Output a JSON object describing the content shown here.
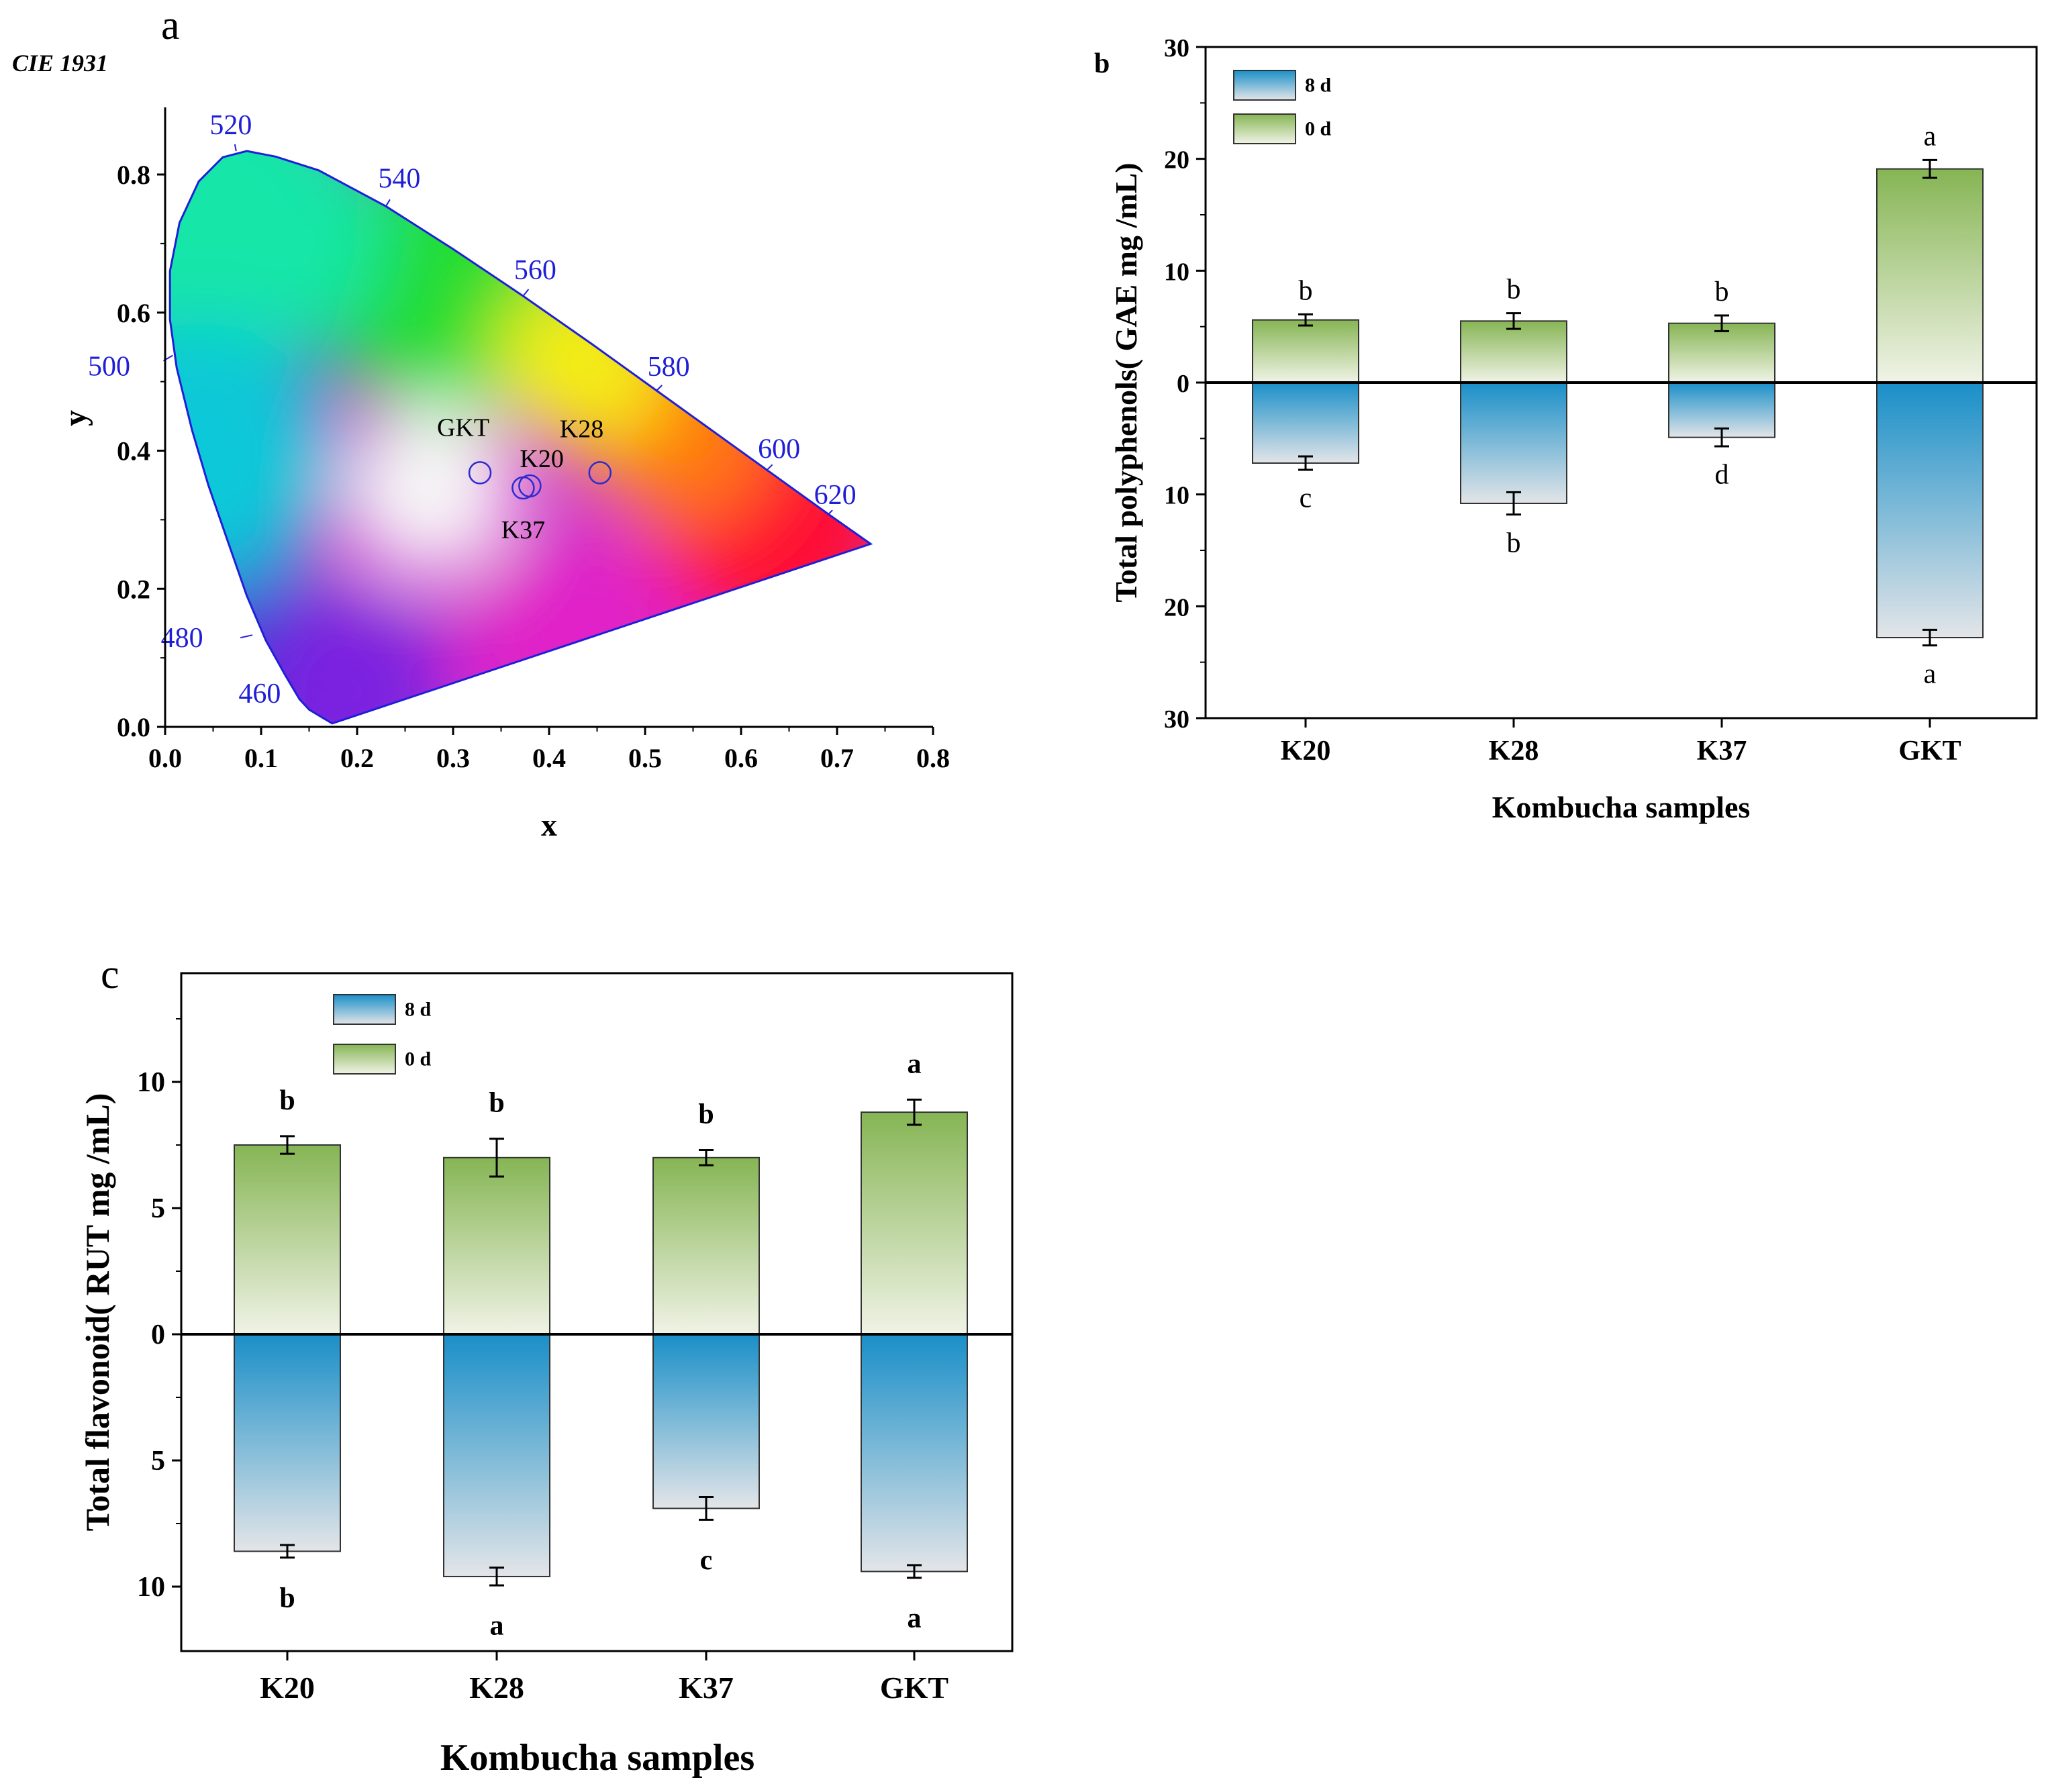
{
  "colors": {
    "axis": "#000000",
    "locus": "#1f1fd8",
    "wavelength_label": "#1f1fd8",
    "marker": "#2b2bd0",
    "bar_8d_top": "#1a8fc8",
    "bar_8d_bottom": "#e3e5e8",
    "bar_0d_top": "#86b554",
    "bar_0d_bottom": "#f0f3e6"
  },
  "chart_data": [
    {
      "panel": "a",
      "type": "scatter",
      "title": "CIE 1931",
      "xlabel": "x",
      "ylabel": "y",
      "xlim": [
        0,
        0.8
      ],
      "ylim": [
        0,
        0.9
      ],
      "xticks": [
        "0.0",
        "0.1",
        "0.2",
        "0.3",
        "0.4",
        "0.5",
        "0.6",
        "0.7",
        "0.8"
      ],
      "yticks": [
        "0.0",
        "0.2",
        "0.4",
        "0.6",
        "0.8"
      ],
      "wavelength_labels": [
        {
          "label": "460",
          "x": 0.144,
          "y": 0.03
        },
        {
          "label": "480",
          "x": 0.091,
          "y": 0.133
        },
        {
          "label": "500",
          "x": 0.008,
          "y": 0.538
        },
        {
          "label": "520",
          "x": 0.074,
          "y": 0.834
        },
        {
          "label": "540",
          "x": 0.23,
          "y": 0.754
        },
        {
          "label": "560",
          "x": 0.373,
          "y": 0.624
        },
        {
          "label": "580",
          "x": 0.512,
          "y": 0.487
        },
        {
          "label": "600",
          "x": 0.627,
          "y": 0.372
        },
        {
          "label": "620",
          "x": 0.691,
          "y": 0.308
        }
      ],
      "points": [
        {
          "name": "GKT",
          "x": 0.328,
          "y": 0.368
        },
        {
          "name": "K28",
          "x": 0.453,
          "y": 0.368
        },
        {
          "name": "K20",
          "x": 0.38,
          "y": 0.349
        },
        {
          "name": "K37",
          "x": 0.373,
          "y": 0.346
        }
      ]
    },
    {
      "panel": "b",
      "type": "bar",
      "xlabel": "Kombucha samples",
      "ylabel": "Total polyphenols( GAE mg /mL)",
      "categories": [
        "K20",
        "K28",
        "K37",
        "GKT"
      ],
      "ylim": [
        -30,
        30
      ],
      "yticks": [
        "30",
        "20",
        "10",
        "0",
        "10",
        "20",
        "30"
      ],
      "series": [
        {
          "name": "8 d",
          "direction": "down",
          "values": [
            7.2,
            10.8,
            4.9,
            22.8
          ],
          "errors": [
            0.6,
            1.0,
            0.8,
            0.7
          ],
          "letters": [
            "c",
            "b",
            "d",
            "a"
          ]
        },
        {
          "name": "0 d",
          "direction": "up",
          "values": [
            5.6,
            5.5,
            5.3,
            19.1
          ],
          "errors": [
            0.5,
            0.7,
            0.7,
            0.8
          ],
          "letters": [
            "b",
            "b",
            "b",
            "a"
          ]
        }
      ]
    },
    {
      "panel": "c",
      "type": "bar",
      "xlabel": "Kombucha samples",
      "ylabel": "Total flavonoid( RUT mg /mL)",
      "categories": [
        "K20",
        "K28",
        "K37",
        "GKT"
      ],
      "ylim": [
        -12.5,
        14
      ],
      "yticks": [
        "10",
        "5",
        "0",
        "5",
        "10"
      ],
      "series": [
        {
          "name": "8 d",
          "direction": "down",
          "values": [
            8.6,
            9.6,
            6.9,
            9.4
          ],
          "errors": [
            0.25,
            0.35,
            0.45,
            0.25
          ],
          "letters": [
            "b",
            "a",
            "c",
            "a"
          ]
        },
        {
          "name": "0 d",
          "direction": "up",
          "values": [
            7.5,
            7.0,
            7.0,
            8.8
          ],
          "errors": [
            0.35,
            0.75,
            0.3,
            0.5
          ],
          "letters": [
            "b",
            "b",
            "b",
            "a"
          ]
        }
      ]
    }
  ]
}
